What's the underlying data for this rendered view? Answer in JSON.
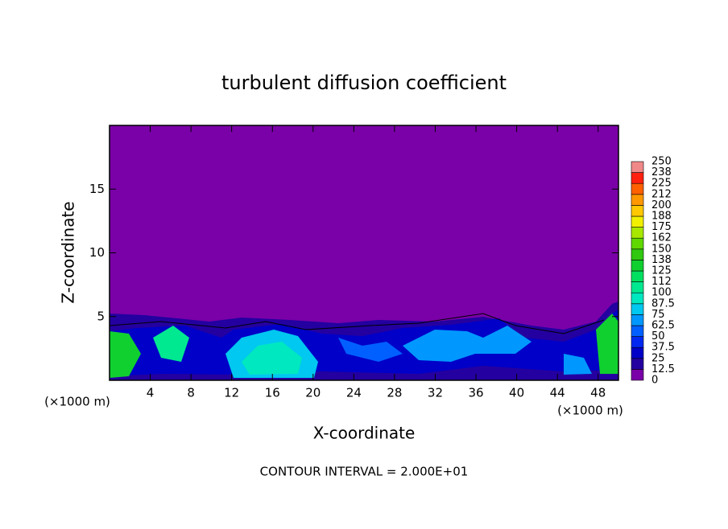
{
  "chart_data": {
    "type": "contour",
    "title": "turbulent diffusion coefficient",
    "x_label": "X-coordinate",
    "y_label": "Z-coordinate",
    "x_unit": "(×1000 m)",
    "note": "CONTOUR INTERVAL = 2.000E+01",
    "xlim": [
      0,
      50
    ],
    "xticks": [
      4,
      8,
      12,
      16,
      20,
      24,
      28,
      32,
      36,
      40,
      44,
      48
    ],
    "ylim": [
      0,
      20
    ],
    "yticks": [
      5,
      10,
      15
    ],
    "levels": [
      0,
      12.5,
      25,
      37.5,
      50,
      62.5,
      75,
      87.5,
      100,
      112,
      125,
      138,
      150,
      162,
      175,
      188,
      200,
      212,
      225,
      238,
      250
    ],
    "colors": [
      "#7a00a8",
      "#2400a0",
      "#0000c8",
      "#0028f0",
      "#0060ff",
      "#0098ff",
      "#00c8f0",
      "#00e8c0",
      "#00e890",
      "#00e060",
      "#10d030",
      "#30c810",
      "#60d800",
      "#a8e800",
      "#f0f000",
      "#ffc800",
      "#ff9800",
      "#ff6000",
      "#ff2010",
      "#f08888"
    ]
  }
}
